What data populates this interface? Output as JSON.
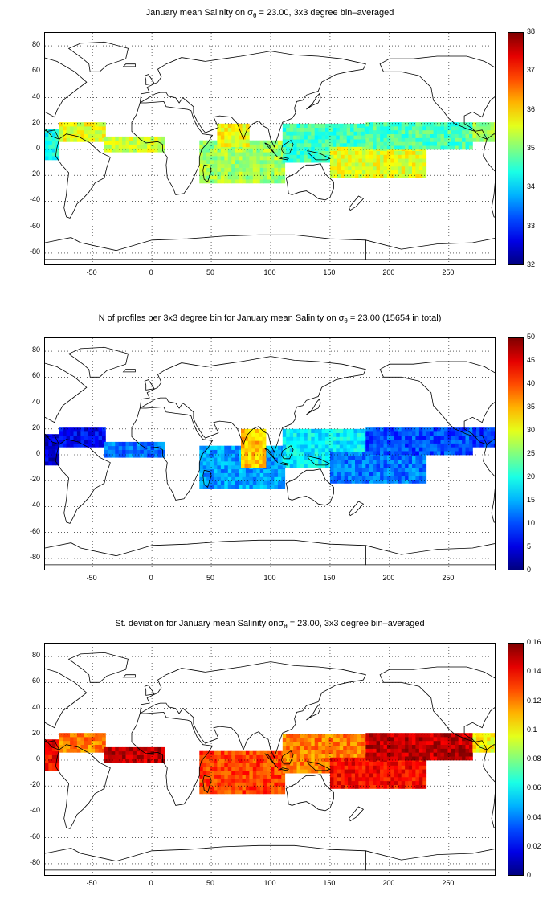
{
  "chart_data": [
    {
      "type": "heatmap",
      "title_pre": "January mean Salinity on σ",
      "title_sub": "θ",
      "title_post": " = 23.00, 3x3 degree bin–averaged",
      "xlim": [
        -90,
        290
      ],
      "ylim": [
        -90,
        90
      ],
      "xticks": [
        "-50",
        "0",
        "50",
        "100",
        "150",
        "200",
        "250"
      ],
      "yticks": [
        "80",
        "60",
        "40",
        "20",
        "0",
        "-20",
        "-40",
        "-60",
        "-80"
      ],
      "colorbar": {
        "min": 32,
        "max": 38,
        "ticks": [
          "38",
          "37",
          "36",
          "35",
          "34",
          "33",
          "32"
        ],
        "colormap": "jet"
      },
      "grid": true,
      "regions": [
        {
          "x": [
            -90,
            -78
          ],
          "y": [
            -8,
            16
          ],
          "value": 34.4
        },
        {
          "x": [
            -78,
            -40
          ],
          "y": [
            6,
            20
          ],
          "value": 35.6
        },
        {
          "x": [
            -40,
            10
          ],
          "y": [
            -2,
            10
          ],
          "value": 35.5
        },
        {
          "x": [
            40,
            110
          ],
          "y": [
            -26,
            6
          ],
          "value": 35.2
        },
        {
          "x": [
            55,
            80
          ],
          "y": [
            2,
            20
          ],
          "value": 35.7
        },
        {
          "x": [
            110,
            180
          ],
          "y": [
            -10,
            20
          ],
          "value": 34.6
        },
        {
          "x": [
            150,
            230
          ],
          "y": [
            -22,
            0
          ],
          "value": 35.6
        },
        {
          "x": [
            180,
            270
          ],
          "y": [
            0,
            20
          ],
          "value": 34.7
        },
        {
          "x": [
            270,
            290
          ],
          "y": [
            6,
            20
          ],
          "value": 35.2
        }
      ]
    },
    {
      "type": "heatmap",
      "title_pre": "N of profiles per 3x3 degree bin for January mean Salinity on σ",
      "title_sub": "θ",
      "title_post": " = 23.00 (15654 in total)",
      "xlim": [
        -90,
        290
      ],
      "ylim": [
        -90,
        90
      ],
      "xticks": [
        "-50",
        "0",
        "50",
        "100",
        "150",
        "200",
        "250"
      ],
      "yticks": [
        "80",
        "60",
        "40",
        "20",
        "0",
        "-20",
        "-40",
        "-60",
        "-80"
      ],
      "colorbar": {
        "min": 0,
        "max": 50,
        "ticks": [
          "50",
          "45",
          "40",
          "35",
          "30",
          "25",
          "20",
          "15",
          "10",
          "5",
          "0"
        ],
        "colormap": "jet"
      },
      "grid": true,
      "regions": [
        {
          "x": [
            -90,
            -78
          ],
          "y": [
            -8,
            16
          ],
          "value": 4
        },
        {
          "x": [
            -78,
            -40
          ],
          "y": [
            6,
            20
          ],
          "value": 6
        },
        {
          "x": [
            -40,
            10
          ],
          "y": [
            -2,
            10
          ],
          "value": 12
        },
        {
          "x": [
            40,
            110
          ],
          "y": [
            -26,
            6
          ],
          "value": 14
        },
        {
          "x": [
            75,
            95
          ],
          "y": [
            -10,
            20
          ],
          "value": 34
        },
        {
          "x": [
            110,
            180
          ],
          "y": [
            -10,
            20
          ],
          "value": 18
        },
        {
          "x": [
            150,
            230
          ],
          "y": [
            -22,
            0
          ],
          "value": 12
        },
        {
          "x": [
            180,
            270
          ],
          "y": [
            0,
            20
          ],
          "value": 10
        },
        {
          "x": [
            270,
            290
          ],
          "y": [
            6,
            20
          ],
          "value": 8
        }
      ]
    },
    {
      "type": "heatmap",
      "title_pre": "St. deviation for January mean Salinity onσ",
      "title_sub": "θ",
      "title_post": " = 23.00, 3x3 degree bin–averaged",
      "xlim": [
        -90,
        290
      ],
      "ylim": [
        -90,
        90
      ],
      "xticks": [
        "-50",
        "0",
        "50",
        "100",
        "150",
        "200",
        "250"
      ],
      "yticks": [
        "80",
        "60",
        "40",
        "20",
        "0",
        "-20",
        "-40",
        "-60",
        "-80"
      ],
      "colorbar": {
        "min": 0,
        "max": 0.16,
        "ticks": [
          "0.16",
          "0.14",
          "0.12",
          "0.1",
          "0.08",
          "0.06",
          "0.04",
          "0.02",
          "0"
        ],
        "colormap": "jet"
      },
      "grid": true,
      "regions": [
        {
          "x": [
            -90,
            -78
          ],
          "y": [
            -8,
            16
          ],
          "value": 0.14
        },
        {
          "x": [
            -78,
            -40
          ],
          "y": [
            6,
            20
          ],
          "value": 0.12
        },
        {
          "x": [
            -40,
            10
          ],
          "y": [
            -2,
            10
          ],
          "value": 0.15
        },
        {
          "x": [
            40,
            110
          ],
          "y": [
            -26,
            6
          ],
          "value": 0.13
        },
        {
          "x": [
            110,
            180
          ],
          "y": [
            -10,
            20
          ],
          "value": 0.12
        },
        {
          "x": [
            150,
            230
          ],
          "y": [
            -22,
            0
          ],
          "value": 0.14
        },
        {
          "x": [
            180,
            270
          ],
          "y": [
            0,
            20
          ],
          "value": 0.15
        },
        {
          "x": [
            270,
            290
          ],
          "y": [
            6,
            20
          ],
          "value": 0.1
        }
      ]
    }
  ]
}
